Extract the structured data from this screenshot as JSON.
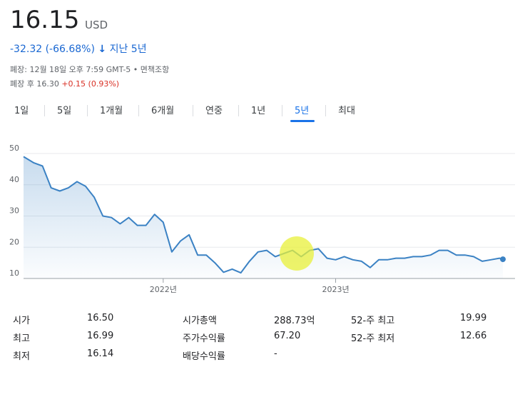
{
  "header": {
    "price": "16.15",
    "currency": "USD",
    "change": "-32.32 (-66.68%)",
    "period": "지난 5년",
    "close_info": "폐장: 12월 18일 오후 7:59 GMT-5 • 면책조항",
    "after_hours_label": "폐장 후 16.30",
    "after_hours_change": "+0.15 (0.93%)"
  },
  "tabs": [
    "1일",
    "5일",
    "1개월",
    "6개월",
    "연중",
    "1년",
    "5년",
    "최대"
  ],
  "active_tab": 6,
  "chart_data": {
    "type": "line",
    "color": "#3b82c4",
    "grid": true,
    "x": [
      2021.19,
      2021.25,
      2021.3,
      2021.35,
      2021.4,
      2021.45,
      2021.5,
      2021.55,
      2021.6,
      2021.65,
      2021.7,
      2021.75,
      2021.8,
      2021.85,
      2021.9,
      2021.95,
      2022.0,
      2022.05,
      2022.1,
      2022.15,
      2022.2,
      2022.25,
      2022.3,
      2022.35,
      2022.4,
      2022.45,
      2022.5,
      2022.55,
      2022.6,
      2022.65,
      2022.7,
      2022.75,
      2022.8,
      2022.85,
      2022.9,
      2022.95,
      2023.0,
      2023.05,
      2023.1,
      2023.15,
      2023.2,
      2023.25,
      2023.3,
      2023.35,
      2023.4,
      2023.45,
      2023.5,
      2023.55,
      2023.6,
      2023.65,
      2023.7,
      2023.75,
      2023.8,
      2023.85,
      2023.9,
      2023.95,
      2023.97
    ],
    "values": [
      49,
      47,
      46,
      39,
      38,
      39,
      41,
      39.5,
      36,
      30,
      29.5,
      27.5,
      29.5,
      27,
      27,
      30.5,
      28,
      18.5,
      22,
      24,
      17.5,
      17.5,
      15,
      12,
      13,
      11.8,
      15.5,
      18.5,
      19,
      17,
      18,
      19,
      17,
      19,
      19.5,
      16.5,
      16,
      17,
      16,
      15.5,
      13.5,
      16,
      16,
      16.5,
      16.5,
      17,
      17,
      17.5,
      19,
      19,
      17.5,
      17.5,
      17,
      15.5,
      16,
      16.5,
      16.15
    ],
    "xlim": [
      2021.19,
      2023.97
    ],
    "xticks": [
      {
        "value": 2022,
        "label": "2022년"
      },
      {
        "value": 2023,
        "label": "2023년"
      }
    ],
    "ylim": [
      10,
      50
    ],
    "yticks": [
      10,
      20,
      30,
      40,
      50
    ]
  },
  "stats": [
    [
      {
        "label": "시가",
        "value": "16.50"
      },
      {
        "label": "시가총액",
        "value": "288.73억"
      },
      {
        "label": "52-주 최고",
        "value": "19.99"
      }
    ],
    [
      {
        "label": "최고",
        "value": "16.99"
      },
      {
        "label": "주가수익률",
        "value": "67.20"
      },
      {
        "label": "52-주 최저",
        "value": "12.66"
      }
    ],
    [
      {
        "label": "최저",
        "value": "16.14"
      },
      {
        "label": "배당수익률",
        "value": "-"
      }
    ]
  ]
}
